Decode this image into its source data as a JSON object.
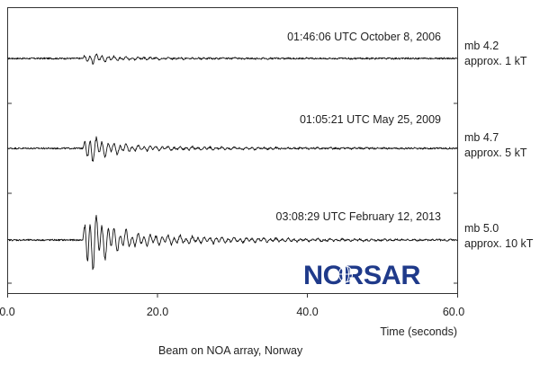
{
  "chart_data": {
    "type": "line",
    "xlabel": "Time (seconds)",
    "xlim": [
      0,
      60
    ],
    "x_ticks": [
      "0.0",
      "20.0",
      "40.0",
      "60.0"
    ],
    "caption": "Beam on NOA array, Norway",
    "logo_text": "NORSAR",
    "series": [
      {
        "event": "01:46:06 UTC October 8, 2006",
        "magnitude": "mb 4.2",
        "yield": "approx. 1 kT",
        "onset_seconds": 10.0,
        "relative_amplitude": 0.18
      },
      {
        "event": "01:05:21 UTC May 25, 2009",
        "magnitude": "mb 4.7",
        "yield": "approx. 5 kT",
        "onset_seconds": 10.0,
        "relative_amplitude": 0.45
      },
      {
        "event": "03:08:29 UTC February 12, 2013",
        "magnitude": "mb 5.0",
        "yield": "approx. 10 kT",
        "onset_seconds": 10.0,
        "relative_amplitude": 1.0
      }
    ],
    "grid": false,
    "colors": {
      "trace": "#111111",
      "axis": "#333333",
      "logo": "#1f3a8a"
    }
  }
}
